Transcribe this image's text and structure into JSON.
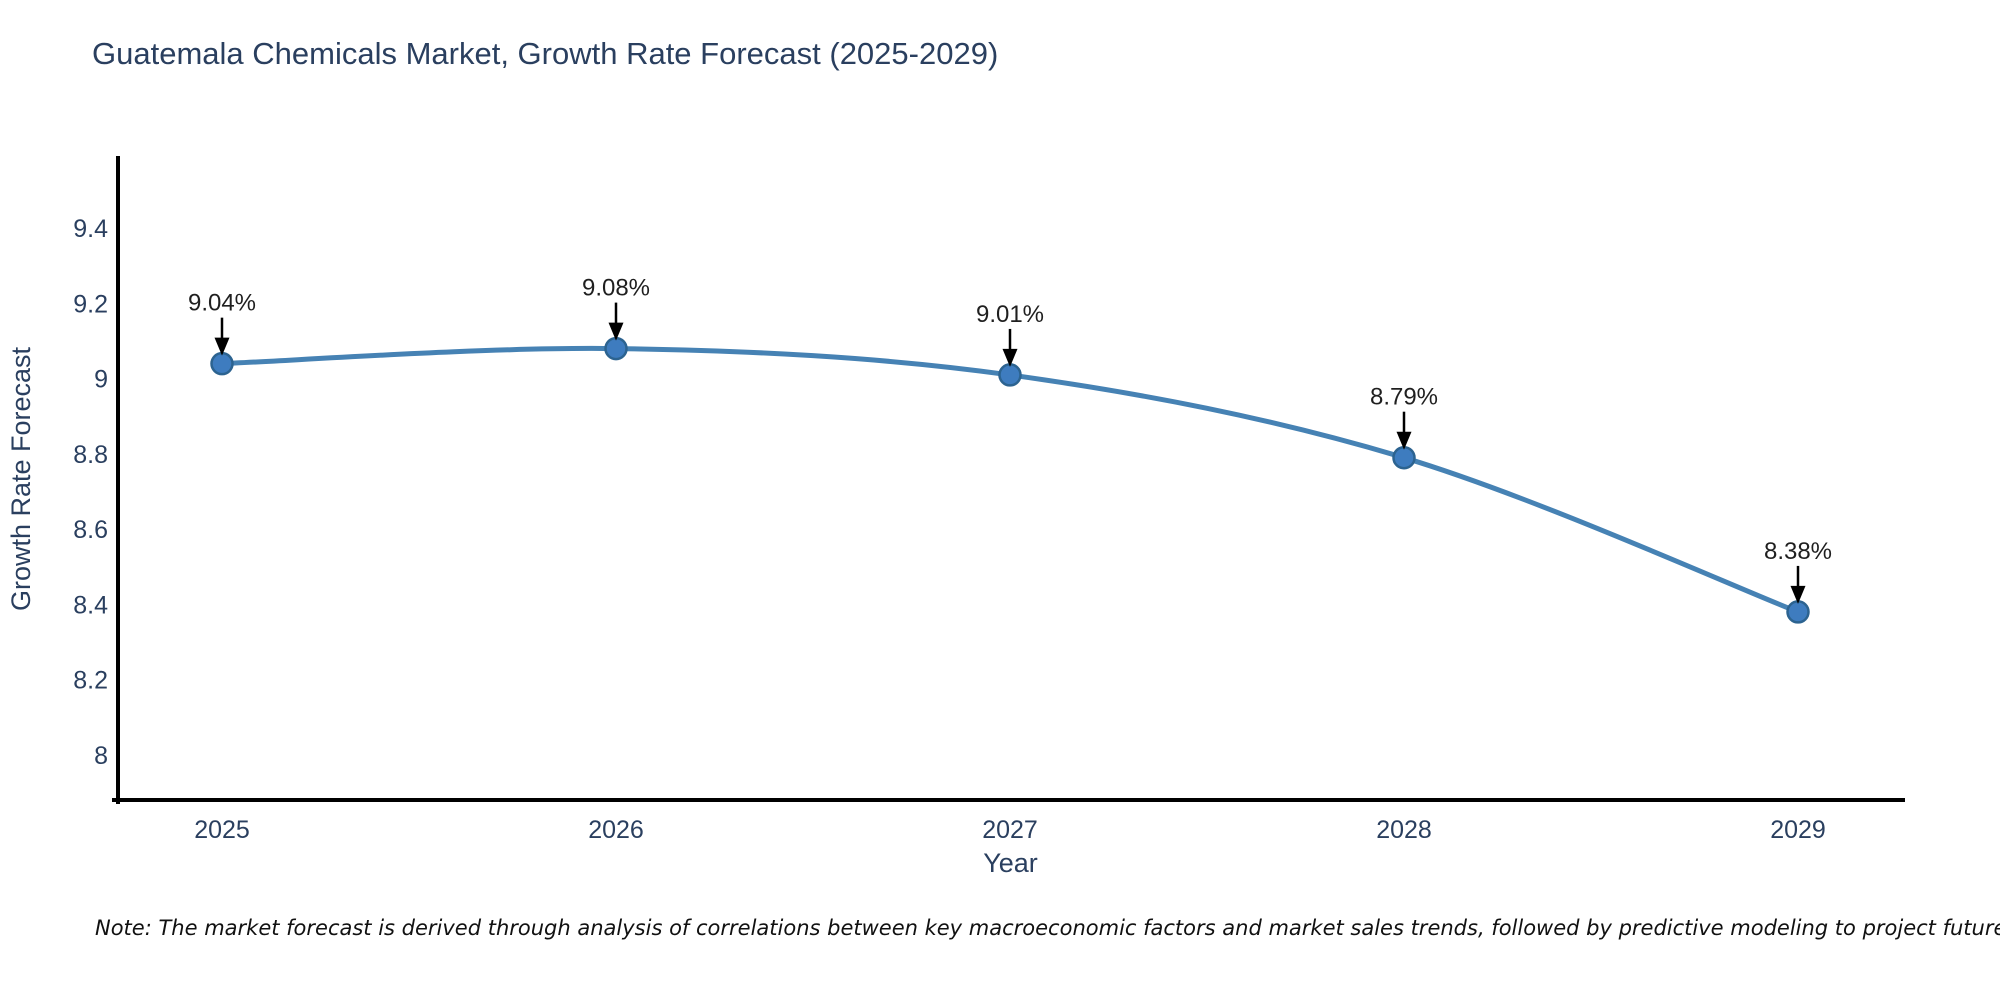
{
  "title": "Guatemala Chemicals Market, Growth Rate Forecast (2025-2029)",
  "note": "Note: The market forecast is derived through analysis of correlations between key macroeconomic factors and market sales trends, followed by predictive modeling to project future sales",
  "chart_data": {
    "type": "line",
    "title": "Guatemala Chemicals Market, Growth Rate Forecast (2025-2029)",
    "x": [
      2025,
      2026,
      2027,
      2028,
      2029
    ],
    "y": [
      9.04,
      9.08,
      9.01,
      8.79,
      8.38
    ],
    "point_labels": [
      "9.04%",
      "9.08%",
      "9.01%",
      "8.79%",
      "8.38%"
    ],
    "xlabel": "Year",
    "ylabel": "Growth Rate Forecast",
    "xtick_labels": [
      "2025",
      "2026",
      "2027",
      "2028",
      "2029"
    ],
    "yticks": [
      8,
      8.2,
      8.4,
      8.6,
      8.8,
      9,
      9.2,
      9.4
    ],
    "ytick_labels": [
      "8",
      "8.2",
      "8.4",
      "8.6",
      "8.8",
      "9",
      "9.2",
      "9.4"
    ],
    "ylim": [
      7.88,
      9.5867
    ],
    "grid": false,
    "legend": "none",
    "colors": {
      "line": "#4682B4",
      "marker_fill": "#3E7CBF",
      "marker_edge": "#2C6390",
      "axis_line": "#000000",
      "axis_text": "#2a3f5f",
      "annotation_text": "#1f1f1f",
      "arrow": "#000000",
      "background": "#ffffff"
    }
  }
}
